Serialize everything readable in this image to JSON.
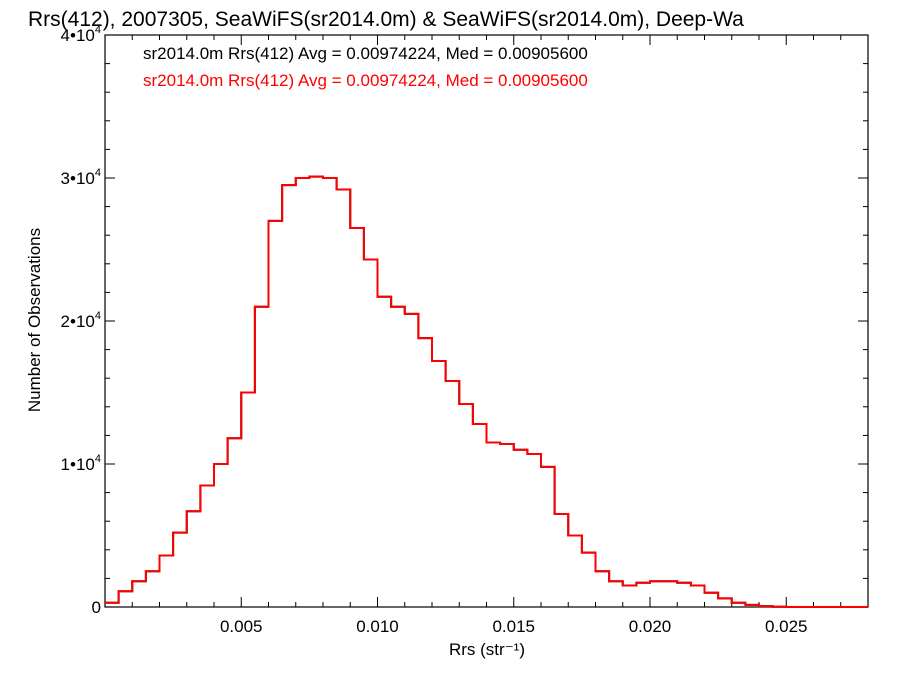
{
  "chart_data": {
    "type": "line",
    "title": "Rrs(412), 2007305, SeaWiFS(sr2014.0m) & SeaWiFS(sr2014.0m), Deep-Wa",
    "xlabel": "Rrs (str⁻¹)",
    "ylabel": "Number of Observations",
    "xlim": [
      0.0,
      0.028
    ],
    "ylim": [
      0,
      40000
    ],
    "x_ticks": [
      0.005,
      0.01,
      0.015,
      0.02,
      0.025
    ],
    "x_tick_labels": [
      "0.005",
      "0.010",
      "0.015",
      "0.020",
      "0.025"
    ],
    "y_ticks": [
      0,
      10000,
      20000,
      30000,
      40000
    ],
    "y_tick_labels": [
      {
        "base": "0",
        "exp": ""
      },
      {
        "base": "1•10",
        "exp": "4"
      },
      {
        "base": "2•10",
        "exp": "4"
      },
      {
        "base": "3•10",
        "exp": "4"
      },
      {
        "base": "4•10",
        "exp": "4"
      }
    ],
    "legend_position": "top-left",
    "grid": false,
    "series": [
      {
        "name": "sr2014.0m Rrs(412) Avg = 0.00974224, Med = 0.00905600",
        "color": "#000000",
        "x": [
          0.0,
          0.0005,
          0.001,
          0.0015,
          0.002,
          0.0025,
          0.003,
          0.0035,
          0.004,
          0.0045,
          0.005,
          0.0055,
          0.006,
          0.0065,
          0.007,
          0.0075,
          0.008,
          0.0085,
          0.009,
          0.0095,
          0.01,
          0.0105,
          0.011,
          0.0115,
          0.012,
          0.0125,
          0.013,
          0.0135,
          0.014,
          0.0145,
          0.015,
          0.0155,
          0.016,
          0.0165,
          0.017,
          0.0175,
          0.018,
          0.0185,
          0.019,
          0.0195,
          0.02,
          0.0205,
          0.021,
          0.0215,
          0.022,
          0.0225,
          0.023,
          0.0235,
          0.024,
          0.0245,
          0.025,
          0.026,
          0.027,
          0.028
        ],
        "y": [
          300,
          1100,
          1800,
          2500,
          3600,
          5200,
          6700,
          8500,
          10000,
          11800,
          15000,
          21000,
          27000,
          29500,
          30000,
          30100,
          30000,
          29200,
          26500,
          24300,
          21700,
          21000,
          20500,
          18800,
          17200,
          15800,
          14200,
          12800,
          11500,
          11400,
          11000,
          10700,
          9800,
          6500,
          5000,
          3800,
          2500,
          1800,
          1500,
          1700,
          1800,
          1800,
          1700,
          1500,
          1000,
          600,
          300,
          150,
          60,
          20,
          0,
          0,
          0,
          0
        ]
      },
      {
        "name": "sr2014.0m Rrs(412) Avg = 0.00974224, Med = 0.00905600",
        "color": "#ff0000",
        "x": [
          0.0,
          0.0005,
          0.001,
          0.0015,
          0.002,
          0.0025,
          0.003,
          0.0035,
          0.004,
          0.0045,
          0.005,
          0.0055,
          0.006,
          0.0065,
          0.007,
          0.0075,
          0.008,
          0.0085,
          0.009,
          0.0095,
          0.01,
          0.0105,
          0.011,
          0.0115,
          0.012,
          0.0125,
          0.013,
          0.0135,
          0.014,
          0.0145,
          0.015,
          0.0155,
          0.016,
          0.0165,
          0.017,
          0.0175,
          0.018,
          0.0185,
          0.019,
          0.0195,
          0.02,
          0.0205,
          0.021,
          0.0215,
          0.022,
          0.0225,
          0.023,
          0.0235,
          0.024,
          0.0245,
          0.025,
          0.026,
          0.027,
          0.028
        ],
        "y": [
          300,
          1100,
          1800,
          2500,
          3600,
          5200,
          6700,
          8500,
          10000,
          11800,
          15000,
          21000,
          27000,
          29500,
          30000,
          30100,
          30000,
          29200,
          26500,
          24300,
          21700,
          21000,
          20500,
          18800,
          17200,
          15800,
          14200,
          12800,
          11500,
          11400,
          11000,
          10700,
          9800,
          6500,
          5000,
          3800,
          2500,
          1800,
          1500,
          1700,
          1800,
          1800,
          1700,
          1500,
          1000,
          600,
          300,
          150,
          60,
          20,
          0,
          0,
          0,
          0
        ]
      }
    ]
  }
}
